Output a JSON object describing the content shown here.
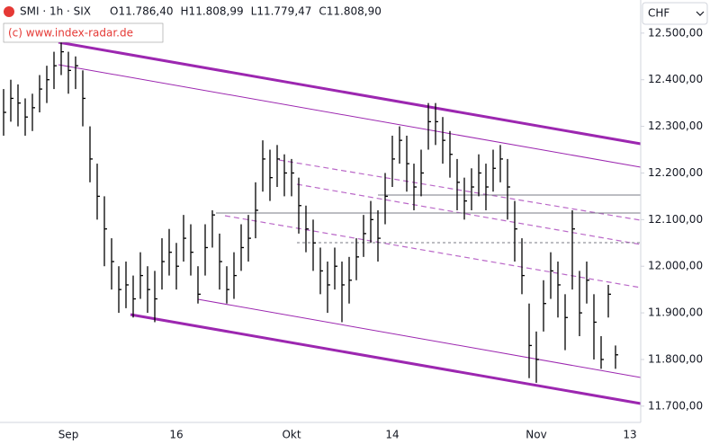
{
  "chart_data": {
    "type": "ohlc",
    "title": "SMI · 1h · SIX",
    "header_values": [
      "O11.786,40",
      "H11.808,99",
      "L11.779,47",
      "C11.808,90"
    ],
    "annotation": "(c) www.index-radar.de",
    "currency": "CHF",
    "color": "#000000",
    "categories": [
      null,
      null,
      null,
      null,
      null,
      null,
      null,
      null,
      null,
      "Sep",
      null,
      null,
      null,
      null,
      null,
      null,
      null,
      null,
      null,
      null,
      null,
      null,
      null,
      null,
      "16",
      null,
      null,
      null,
      null,
      null,
      null,
      null,
      null,
      null,
      null,
      null,
      null,
      null,
      null,
      null,
      "Okt",
      null,
      null,
      null,
      null,
      null,
      null,
      null,
      null,
      null,
      null,
      null,
      null,
      null,
      "14",
      null,
      null,
      null,
      null,
      null,
      null,
      null,
      null,
      null,
      null,
      null,
      null,
      null,
      null,
      null,
      null,
      null,
      null,
      null,
      "Nov",
      null,
      null,
      null,
      null,
      null,
      null,
      null,
      null,
      null,
      null,
      null,
      null,
      "13",
      null
    ],
    "high": [
      12380,
      12400,
      12390,
      12360,
      12370,
      12410,
      12430,
      12460,
      12480,
      12460,
      12450,
      12420,
      12300,
      12220,
      12150,
      12060,
      12000,
      12010,
      11980,
      12030,
      12000,
      11990,
      12060,
      12080,
      12050,
      12110,
      12090,
      12000,
      12090,
      12120,
      12070,
      12000,
      12030,
      12090,
      12110,
      12180,
      12270,
      12250,
      12260,
      12240,
      12230,
      12190,
      12130,
      12100,
      12040,
      12010,
      12040,
      12010,
      12020,
      12060,
      12110,
      12140,
      12120,
      12200,
      12280,
      12300,
      12280,
      12220,
      12250,
      12350,
      12350,
      12320,
      12290,
      12230,
      12190,
      12210,
      12240,
      12220,
      12250,
      12260,
      12230,
      12140,
      12060,
      11920,
      11860,
      11970,
      12030,
      12010,
      11940,
      12120,
      11990,
      12010,
      11940,
      11850,
      11960,
      11830,
      null,
      null,
      null
    ],
    "low": [
      12280,
      12310,
      12300,
      12280,
      12290,
      12330,
      12350,
      12380,
      12410,
      12370,
      12380,
      12300,
      12180,
      12100,
      12000,
      11950,
      11900,
      11910,
      11890,
      11930,
      11900,
      11880,
      11950,
      11980,
      11950,
      12010,
      11980,
      11920,
      11980,
      12040,
      11950,
      11920,
      11930,
      11990,
      12010,
      12060,
      12160,
      12140,
      12170,
      12150,
      12150,
      12070,
      12030,
      11990,
      11940,
      11900,
      11950,
      11880,
      11920,
      11970,
      12020,
      12050,
      12010,
      12090,
      12170,
      12220,
      12160,
      12120,
      12150,
      12250,
      12260,
      12220,
      12190,
      12120,
      12100,
      12120,
      12150,
      12120,
      12160,
      12180,
      12100,
      12010,
      11940,
      11760,
      11750,
      11860,
      11930,
      11890,
      11820,
      11950,
      11850,
      11920,
      11800,
      11780,
      11890,
      11780,
      null,
      null,
      null
    ],
    "close": [
      12330,
      12360,
      12350,
      12320,
      12340,
      12380,
      12400,
      12430,
      12460,
      12420,
      12430,
      12360,
      12230,
      12150,
      12080,
      12010,
      11950,
      11960,
      11930,
      11980,
      11950,
      11930,
      12010,
      12030,
      12000,
      12060,
      12030,
      11940,
      12040,
      12110,
      12010,
      11950,
      11980,
      12040,
      12060,
      12120,
      12230,
      12190,
      12230,
      12200,
      12200,
      12130,
      12080,
      12050,
      11990,
      11960,
      12000,
      11960,
      11970,
      12020,
      12070,
      12100,
      12060,
      12150,
      12230,
      12270,
      12220,
      12170,
      12200,
      12310,
      12310,
      12270,
      12240,
      12180,
      12140,
      12170,
      12200,
      12170,
      12210,
      12230,
      12170,
      12080,
      11980,
      11830,
      11800,
      11920,
      11990,
      11960,
      11890,
      12080,
      11900,
      11970,
      11880,
      11800,
      11940,
      11810,
      null,
      null,
      null
    ],
    "ylim": [
      11665,
      12571
    ],
    "yticks": [
      {
        "value": 11700,
        "label": "11.700,00"
      },
      {
        "value": 11800,
        "label": "11.800,00"
      },
      {
        "value": 11900,
        "label": "11.900,00"
      },
      {
        "value": 12000,
        "label": "12.000,00"
      },
      {
        "value": 12100,
        "label": "12.100,00"
      },
      {
        "value": 12200,
        "label": "12.200,00"
      },
      {
        "value": 12300,
        "label": "12.300,00"
      },
      {
        "value": 12400,
        "label": "12.400,00"
      },
      {
        "value": 12500,
        "label": "12.500,00"
      }
    ]
  }
}
